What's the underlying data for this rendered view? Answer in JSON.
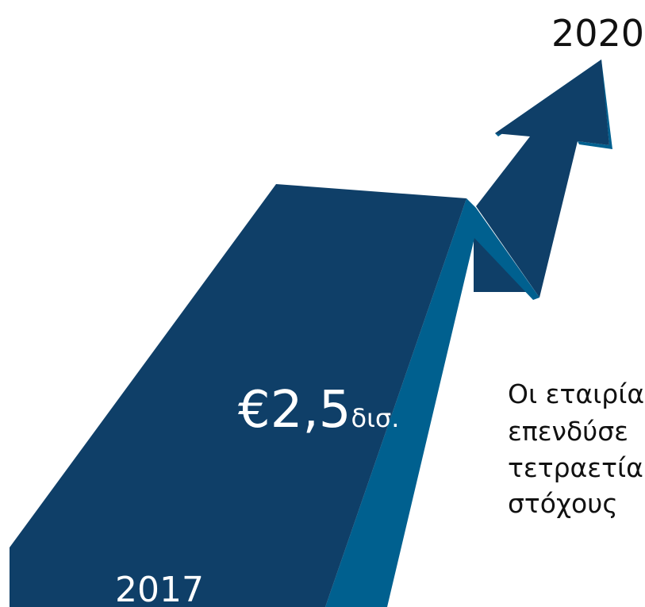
{
  "labels": {
    "end_year": "2020",
    "amount": "€2,5",
    "amount_unit": "δισ.",
    "start_year": "2017"
  },
  "description": {
    "lines": [
      "Οι εταιρία",
      "επενδύσε",
      "τετραετία",
      "στόχους"
    ]
  }
}
